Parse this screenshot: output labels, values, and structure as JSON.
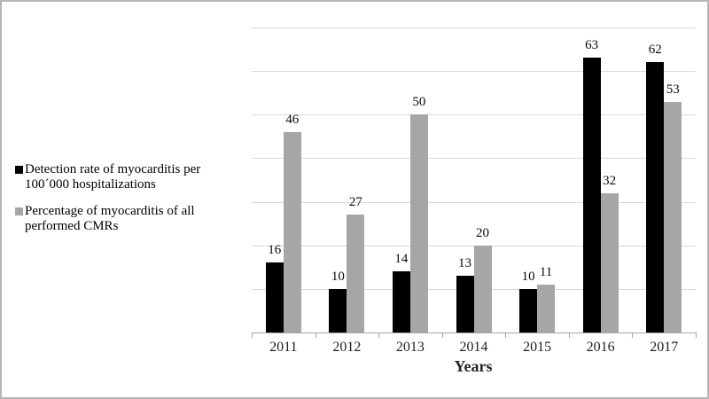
{
  "figure": {
    "background": "#ffffff",
    "border_color": "#b5b5b5"
  },
  "legend": {
    "position": "left",
    "items": [
      {
        "swatch_color": "#000000",
        "lines": [
          "Detection rate of myocarditis per",
          "100´000 hospitalizations"
        ]
      },
      {
        "swatch_color": "#a6a6a6",
        "lines": [
          "Percentage of myocarditis of all",
          "performed CMRs"
        ]
      }
    ]
  },
  "chart_data": {
    "type": "bar",
    "title": "",
    "xlabel": "Years",
    "ylabel": "",
    "categories": [
      "2011",
      "2012",
      "2013",
      "2014",
      "2015",
      "2016",
      "2017"
    ],
    "series": [
      {
        "name": "Detection rate of myocarditis per 100´000 hospitalizations",
        "color": "#000000",
        "values": [
          16,
          10,
          14,
          13,
          10,
          63,
          62
        ]
      },
      {
        "name": "Percentage of myocarditis of all performed CMRs",
        "color": "#a6a6a6",
        "values": [
          46,
          27,
          50,
          20,
          11,
          32,
          53
        ]
      }
    ],
    "ylim": [
      0,
      70
    ],
    "gridline_step": 10,
    "grid": true,
    "y_axis_labels_visible": false,
    "data_labels": "outside-end",
    "legend_position": "left",
    "colors": {
      "grid": "#d9d9d9",
      "axis": "#a6a6a6",
      "label": "#0a0a0a"
    }
  }
}
